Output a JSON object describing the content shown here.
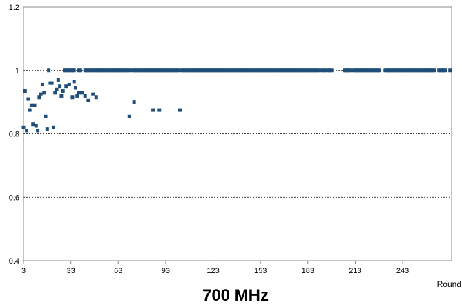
{
  "chart_data": {
    "type": "scatter",
    "title": "700 MHz",
    "xlabel": "Round",
    "ylabel": "",
    "xlim": [
      3,
      274
    ],
    "ylim": [
      0.4,
      1.2
    ],
    "xticks": [
      3,
      33,
      63,
      93,
      123,
      153,
      183,
      213,
      243
    ],
    "yticks": [
      0.4,
      0.6,
      0.8,
      1,
      1.2
    ],
    "ytick_labels": [
      "0.4",
      "0.6",
      "0.8",
      "1",
      "1.2"
    ],
    "grid": "horizontal dotted at 0.6, 0.8, 1",
    "marker_color": "#1f4e79",
    "series": [
      {
        "points": [
          [
            3,
            0.82
          ],
          [
            4,
            0.935
          ],
          [
            5,
            0.81
          ],
          [
            6,
            0.91
          ],
          [
            7,
            0.875
          ],
          [
            8,
            0.89
          ],
          [
            9,
            0.83
          ],
          [
            10,
            0.89
          ],
          [
            11,
            0.825
          ],
          [
            12,
            0.81
          ],
          [
            13,
            0.915
          ],
          [
            14,
            0.925
          ],
          [
            15,
            0.955
          ],
          [
            16,
            0.93
          ],
          [
            17,
            0.855
          ],
          [
            18,
            0.815
          ],
          [
            19,
            1
          ],
          [
            20,
            0.96
          ],
          [
            21,
            0.96
          ],
          [
            22,
            0.82
          ],
          [
            23,
            0.93
          ],
          [
            24,
            0.94
          ],
          [
            25,
            0.97
          ],
          [
            26,
            0.95
          ],
          [
            27,
            0.92
          ],
          [
            28,
            0.935
          ],
          [
            30,
            0.95
          ],
          [
            32,
            0.955
          ],
          [
            34,
            0.915
          ],
          [
            35,
            0.965
          ],
          [
            36,
            0.945
          ],
          [
            37,
            0.92
          ],
          [
            38,
            0.93
          ],
          [
            40,
            0.93
          ],
          [
            42,
            0.92
          ],
          [
            44,
            0.905
          ],
          [
            47,
            0.925
          ],
          [
            49,
            0.915
          ],
          [
            70,
            0.855
          ],
          [
            73,
            0.9
          ],
          [
            85,
            0.875
          ],
          [
            89,
            0.875
          ],
          [
            102,
            0.875
          ],
          [
            29,
            1
          ],
          [
            30,
            1
          ],
          [
            31,
            1
          ],
          [
            32,
            1
          ],
          [
            33,
            1
          ],
          [
            34,
            1
          ],
          [
            35,
            1
          ],
          [
            38,
            1
          ],
          [
            39,
            1
          ],
          [
            42,
            1
          ],
          [
            43,
            1
          ],
          [
            44,
            1
          ],
          [
            45,
            1
          ],
          [
            46,
            1
          ],
          [
            47,
            1
          ],
          [
            48,
            1
          ],
          [
            49,
            1
          ],
          [
            50,
            1
          ],
          [
            51,
            1
          ],
          [
            52,
            1
          ],
          [
            53,
            1
          ],
          [
            54,
            1
          ],
          [
            55,
            1
          ],
          [
            56,
            1
          ],
          [
            57,
            1
          ],
          [
            58,
            1
          ],
          [
            59,
            1
          ],
          [
            60,
            1
          ],
          [
            61,
            1
          ],
          [
            62,
            1
          ],
          [
            63,
            1
          ],
          [
            64,
            1
          ],
          [
            65,
            1
          ],
          [
            66,
            1
          ],
          [
            67,
            1
          ],
          [
            68,
            1
          ],
          [
            69,
            1
          ],
          [
            70,
            1
          ],
          [
            72,
            1
          ],
          [
            73,
            1
          ],
          [
            74,
            1
          ],
          [
            75,
            1
          ],
          [
            76,
            1
          ],
          [
            77,
            1
          ],
          [
            78,
            1
          ],
          [
            79,
            1
          ],
          [
            80,
            1
          ],
          [
            81,
            1
          ],
          [
            82,
            1
          ],
          [
            83,
            1
          ],
          [
            84,
            1
          ],
          [
            85,
            1
          ],
          [
            86,
            1
          ],
          [
            87,
            1
          ],
          [
            88,
            1
          ],
          [
            89,
            1
          ],
          [
            90,
            1
          ],
          [
            91,
            1
          ],
          [
            92,
            1
          ],
          [
            93,
            1
          ],
          [
            94,
            1
          ],
          [
            95,
            1
          ],
          [
            96,
            1
          ],
          [
            97,
            1
          ],
          [
            98,
            1
          ],
          [
            99,
            1
          ],
          [
            100,
            1
          ],
          [
            101,
            1
          ],
          [
            103,
            1
          ],
          [
            104,
            1
          ],
          [
            105,
            1
          ],
          [
            106,
            1
          ],
          [
            107,
            1
          ],
          [
            108,
            1
          ],
          [
            109,
            1
          ],
          [
            110,
            1
          ],
          [
            111,
            1
          ],
          [
            112,
            1
          ],
          [
            113,
            1
          ],
          [
            114,
            1
          ],
          [
            115,
            1
          ],
          [
            116,
            1
          ],
          [
            117,
            1
          ],
          [
            118,
            1
          ],
          [
            119,
            1
          ],
          [
            120,
            1
          ],
          [
            121,
            1
          ],
          [
            122,
            1
          ],
          [
            123,
            1
          ],
          [
            124,
            1
          ],
          [
            125,
            1
          ],
          [
            126,
            1
          ],
          [
            127,
            1
          ],
          [
            128,
            1
          ],
          [
            129,
            1
          ],
          [
            130,
            1
          ],
          [
            131,
            1
          ],
          [
            132,
            1
          ],
          [
            133,
            1
          ],
          [
            134,
            1
          ],
          [
            135,
            1
          ],
          [
            136,
            1
          ],
          [
            137,
            1
          ],
          [
            138,
            1
          ],
          [
            139,
            1
          ],
          [
            140,
            1
          ],
          [
            141,
            1
          ],
          [
            142,
            1
          ],
          [
            143,
            1
          ],
          [
            144,
            1
          ],
          [
            145,
            1
          ],
          [
            146,
            1
          ],
          [
            147,
            1
          ],
          [
            148,
            1
          ],
          [
            149,
            1
          ],
          [
            150,
            1
          ],
          [
            151,
            1
          ],
          [
            152,
            1
          ],
          [
            153,
            1
          ],
          [
            154,
            1
          ],
          [
            155,
            1
          ],
          [
            156,
            1
          ],
          [
            157,
            1
          ],
          [
            158,
            1
          ],
          [
            159,
            1
          ],
          [
            160,
            1
          ],
          [
            161,
            1
          ],
          [
            162,
            1
          ],
          [
            163,
            1
          ],
          [
            164,
            1
          ],
          [
            165,
            1
          ],
          [
            166,
            1
          ],
          [
            167,
            1
          ],
          [
            168,
            1
          ],
          [
            169,
            1
          ],
          [
            170,
            1
          ],
          [
            171,
            1
          ],
          [
            172,
            1
          ],
          [
            173,
            1
          ],
          [
            174,
            1
          ],
          [
            175,
            1
          ],
          [
            176,
            1
          ],
          [
            177,
            1
          ],
          [
            178,
            1
          ],
          [
            179,
            1
          ],
          [
            180,
            1
          ],
          [
            181,
            1
          ],
          [
            182,
            1
          ],
          [
            183,
            1
          ],
          [
            184,
            1
          ],
          [
            185,
            1
          ],
          [
            186,
            1
          ],
          [
            187,
            1
          ],
          [
            188,
            1
          ],
          [
            189,
            1
          ],
          [
            190,
            1
          ],
          [
            192,
            1
          ],
          [
            193,
            1
          ],
          [
            194,
            1
          ],
          [
            196,
            1
          ],
          [
            197,
            1
          ],
          [
            198,
            1
          ],
          [
            206,
            1
          ],
          [
            207,
            1
          ],
          [
            208,
            1
          ],
          [
            209,
            1
          ],
          [
            210,
            1
          ],
          [
            212,
            1
          ],
          [
            213,
            1
          ],
          [
            214,
            1
          ],
          [
            215,
            1
          ],
          [
            216,
            1
          ],
          [
            217,
            1
          ],
          [
            218,
            1
          ],
          [
            219,
            1
          ],
          [
            220,
            1
          ],
          [
            221,
            1
          ],
          [
            222,
            1
          ],
          [
            223,
            1
          ],
          [
            224,
            1
          ],
          [
            225,
            1
          ],
          [
            226,
            1
          ],
          [
            227,
            1
          ],
          [
            228,
            1
          ],
          [
            232,
            1
          ],
          [
            233,
            1
          ],
          [
            234,
            1
          ],
          [
            235,
            1
          ],
          [
            236,
            1
          ],
          [
            237,
            1
          ],
          [
            238,
            1
          ],
          [
            239,
            1
          ],
          [
            240,
            1
          ],
          [
            241,
            1
          ],
          [
            242,
            1
          ],
          [
            243,
            1
          ],
          [
            244,
            1
          ],
          [
            245,
            1
          ],
          [
            246,
            1
          ],
          [
            247,
            1
          ],
          [
            248,
            1
          ],
          [
            249,
            1
          ],
          [
            250,
            1
          ],
          [
            251,
            1
          ],
          [
            252,
            1
          ],
          [
            253,
            1
          ],
          [
            254,
            1
          ],
          [
            255,
            1
          ],
          [
            256,
            1
          ],
          [
            257,
            1
          ],
          [
            258,
            1
          ],
          [
            259,
            1
          ],
          [
            260,
            1
          ],
          [
            261,
            1
          ],
          [
            262,
            1
          ],
          [
            263,
            1
          ],
          [
            266,
            1
          ],
          [
            267,
            1
          ],
          [
            268,
            1
          ],
          [
            269,
            1
          ],
          [
            270,
            1
          ],
          [
            273,
            1
          ]
        ]
      }
    ]
  }
}
